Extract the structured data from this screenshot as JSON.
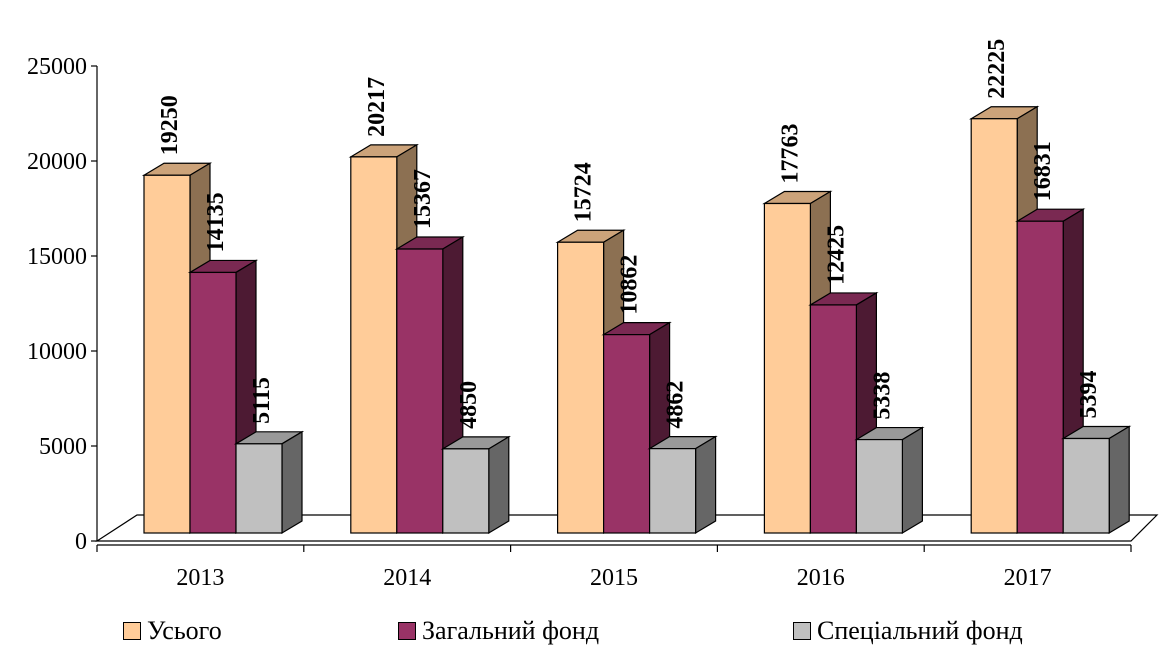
{
  "chart_data": {
    "type": "bar",
    "title": "",
    "xlabel": "",
    "ylabel": "",
    "categories": [
      "2013",
      "2014",
      "2015",
      "2016",
      "2017"
    ],
    "series": [
      {
        "name": "Усього",
        "values": [
          19250,
          20217,
          15724,
          17763,
          22225
        ],
        "color": "#FFCC99",
        "side_color": "#8C7052",
        "top_color": "#CCA37A"
      },
      {
        "name": "Загальний фонд",
        "values": [
          14135,
          15367,
          10862,
          12425,
          16831
        ],
        "color": "#993366",
        "side_color": "#4D1A33",
        "top_color": "#7A2952"
      },
      {
        "name": "Спеціальний фонд",
        "values": [
          5115,
          4850,
          4862,
          5338,
          5394
        ],
        "color": "#C0C0C0",
        "side_color": "#666666",
        "top_color": "#999999"
      }
    ],
    "ylim": [
      0,
      25000
    ],
    "yticks": [
      "0",
      "5000",
      "10000",
      "15000",
      "20000",
      "25000"
    ],
    "grid": false,
    "legend_position": "bottom",
    "style": "3d"
  }
}
